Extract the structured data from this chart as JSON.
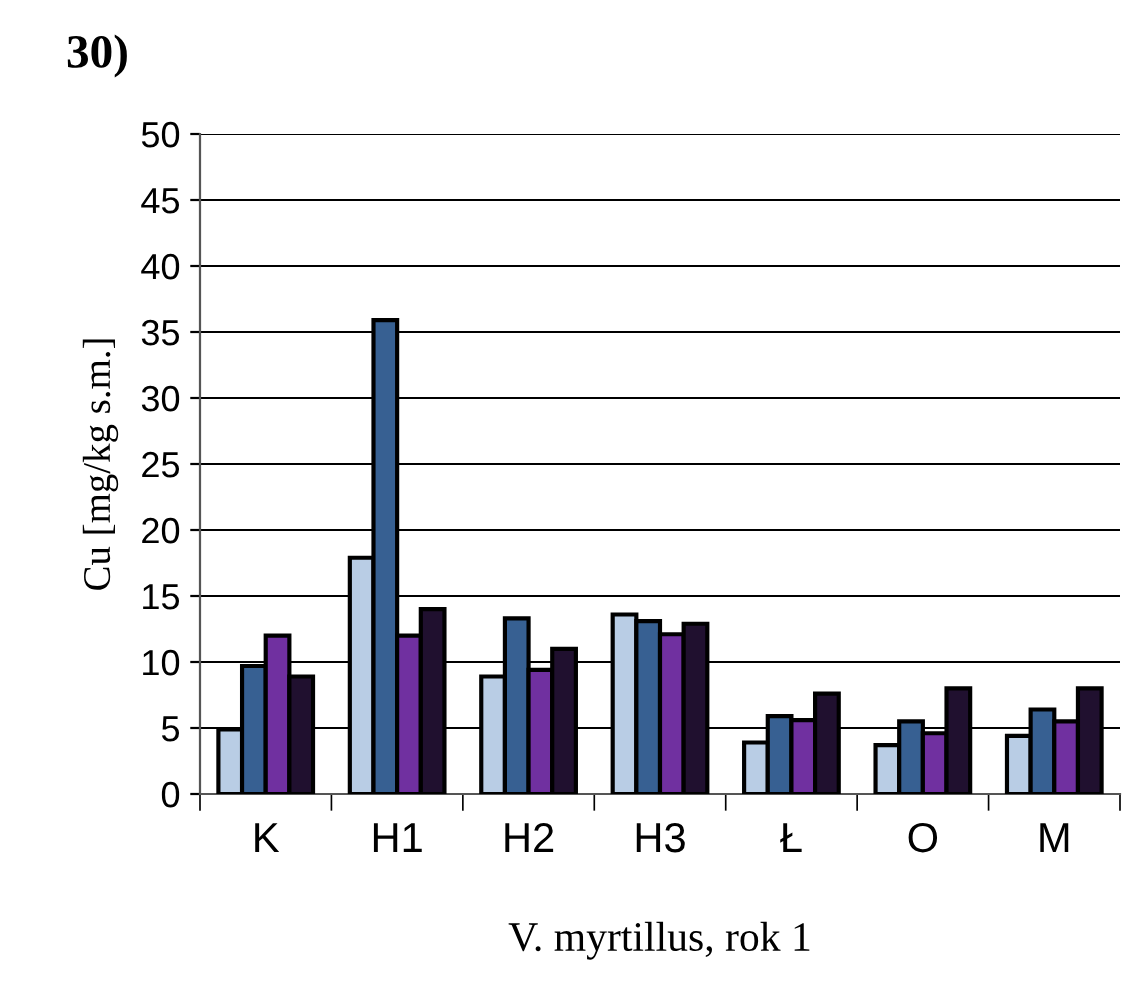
{
  "chart_data": {
    "type": "bar",
    "title": "30)",
    "xlabel": "V. myrtillus, rok 1",
    "ylabel": "Cu [mg/kg s.m.]",
    "categories": [
      "K",
      "H1",
      "H2",
      "H3",
      "Ł",
      "O",
      "M"
    ],
    "series": [
      {
        "color": "#b9cde5",
        "values": [
          4.9,
          17.9,
          8.9,
          13.6,
          3.9,
          3.7,
          4.4
        ]
      },
      {
        "color": "#376092",
        "values": [
          9.7,
          35.9,
          13.3,
          13.1,
          5.9,
          5.5,
          6.4
        ]
      },
      {
        "color": "#7030a0",
        "values": [
          12,
          12,
          9.4,
          12.1,
          5.6,
          4.6,
          5.5
        ]
      },
      {
        "color": "#20102f",
        "values": [
          8.9,
          14,
          11,
          12.9,
          7.6,
          8,
          8
        ]
      }
    ],
    "ylim": [
      0,
      50
    ],
    "yticks": [
      0,
      5,
      10,
      15,
      20,
      25,
      30,
      35,
      40,
      45,
      50
    ],
    "grid": "y"
  }
}
